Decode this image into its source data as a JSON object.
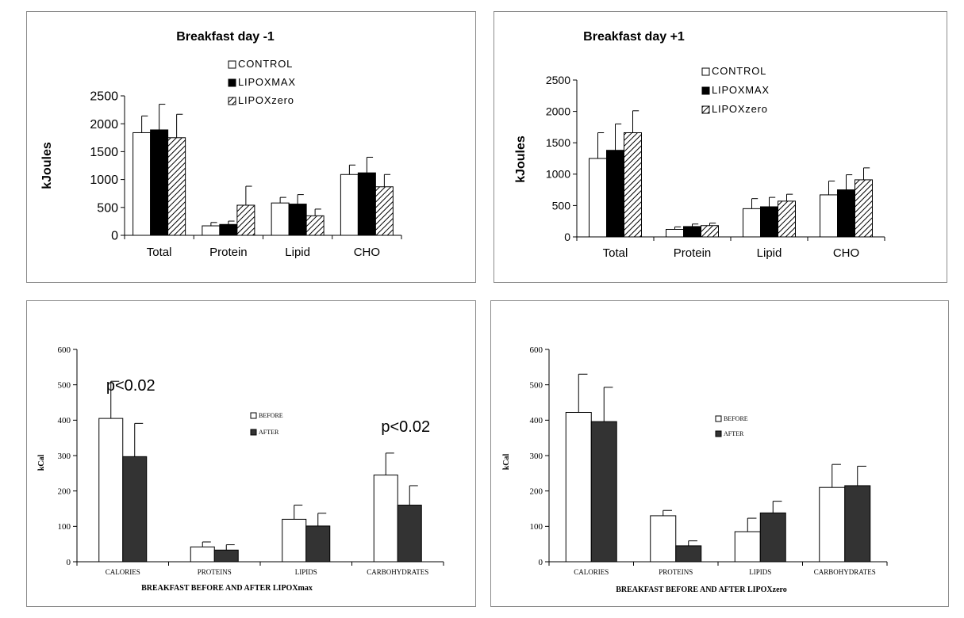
{
  "colors": {
    "control": "#ffffff",
    "lipoxmax": "#000000",
    "before": "#ffffff",
    "after": "#333333",
    "axis": "#000000"
  },
  "chart_data": [
    {
      "type": "bar",
      "title": "Breakfast day -1",
      "ylabel": "kJoules",
      "xlabel": "",
      "ylim": [
        0,
        2500
      ],
      "yticks": [
        0,
        500,
        1000,
        1500,
        2000,
        2500
      ],
      "categories": [
        "Total",
        "Protein",
        "Lipid",
        "CHO"
      ],
      "legend_position": "top-center",
      "series": [
        {
          "name": "CONTROL",
          "fill": "white",
          "values": [
            1840,
            170,
            580,
            1090
          ],
          "errors": [
            300,
            60,
            100,
            170
          ]
        },
        {
          "name": "LIPOXMAX",
          "fill": "black",
          "values": [
            1890,
            195,
            560,
            1120
          ],
          "errors": [
            460,
            60,
            170,
            280
          ]
        },
        {
          "name": "LIPOXzero",
          "fill": "hatched",
          "values": [
            1750,
            540,
            350,
            870
          ],
          "errors": [
            420,
            340,
            120,
            220
          ]
        }
      ]
    },
    {
      "type": "bar",
      "title": "Breakfast day +1",
      "ylabel": "kJoules",
      "xlabel": "",
      "ylim": [
        0,
        2500
      ],
      "yticks": [
        0,
        500,
        1000,
        1500,
        2000,
        2500
      ],
      "categories": [
        "Total",
        "Protein",
        "Lipid",
        "CHO"
      ],
      "legend_position": "top-center",
      "series": [
        {
          "name": "CONTROL",
          "fill": "white",
          "values": [
            1250,
            120,
            450,
            670
          ],
          "errors": [
            410,
            40,
            160,
            220
          ]
        },
        {
          "name": "LIPOXMAX",
          "fill": "black",
          "values": [
            1380,
            165,
            480,
            750
          ],
          "errors": [
            420,
            40,
            150,
            240
          ]
        },
        {
          "name": "LIPOXzero",
          "fill": "hatched",
          "values": [
            1660,
            180,
            570,
            910
          ],
          "errors": [
            350,
            40,
            110,
            190
          ]
        }
      ]
    },
    {
      "type": "bar",
      "title": "",
      "ylabel": "kCal",
      "xlabel": "BREAKFAST BEFORE AND AFTER LIPOXmax",
      "ylim": [
        0,
        600
      ],
      "yticks": [
        0,
        100,
        200,
        300,
        400,
        500,
        600
      ],
      "categories": [
        "CALORIES",
        "PROTEINS",
        "LIPIDS",
        "CARBOHYDRATES"
      ],
      "legend_position": "center",
      "annotations": [
        {
          "text": "p<0.02",
          "category": "CALORIES"
        },
        {
          "text": "p<0.02",
          "category": "CARBOHYDRATES"
        }
      ],
      "series": [
        {
          "name": "BEFORE",
          "fill": "white",
          "values": [
            405,
            42,
            120,
            245
          ],
          "errors": [
            105,
            14,
            40,
            62
          ]
        },
        {
          "name": "AFTER",
          "fill": "dark",
          "values": [
            297,
            33,
            101,
            160
          ],
          "errors": [
            94,
            15,
            36,
            55
          ]
        }
      ]
    },
    {
      "type": "bar",
      "title": "",
      "ylabel": "kCal",
      "xlabel": "BREAKFAST BEFORE AND AFTER LIPOXzero",
      "ylim": [
        0,
        600
      ],
      "yticks": [
        0,
        100,
        200,
        300,
        400,
        500,
        600
      ],
      "categories": [
        "CALORIES",
        "PROTEINS",
        "LIPIDS",
        "CARBOHYDRATES"
      ],
      "legend_position": "center",
      "series": [
        {
          "name": "BEFORE",
          "fill": "white",
          "values": [
            422,
            130,
            85,
            210
          ],
          "errors": [
            108,
            15,
            38,
            65
          ]
        },
        {
          "name": "AFTER",
          "fill": "dark",
          "values": [
            396,
            45,
            138,
            215
          ],
          "errors": [
            97,
            14,
            33,
            55
          ]
        }
      ]
    }
  ]
}
